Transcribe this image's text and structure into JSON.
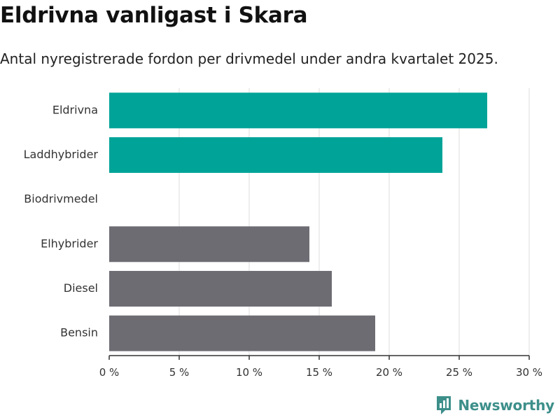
{
  "title": "Eldrivna vanligast i Skara",
  "subtitle": "Antal nyregistrerade fordon per drivmedel under andra kvartalet 2025.",
  "brand": {
    "name": "Newsworthy",
    "icon": "newsworthy-logo-icon",
    "color": "#3d8f8a"
  },
  "colors": {
    "highlight": "#00a398",
    "default": "#6d6c73",
    "grid": "#dddddd",
    "axis": "#333333"
  },
  "chart_data": {
    "type": "bar",
    "orientation": "horizontal",
    "categories": [
      "Eldrivna",
      "Laddhybrider",
      "Biodrivmedel",
      "Elhybrider",
      "Diesel",
      "Bensin"
    ],
    "values": [
      27.0,
      23.8,
      0,
      14.3,
      15.9,
      19.0
    ],
    "highlighted": [
      true,
      true,
      false,
      false,
      false,
      false
    ],
    "xlim": [
      0,
      30
    ],
    "xticks": [
      0,
      5,
      10,
      15,
      20,
      25,
      30
    ],
    "xtick_labels": [
      "0 %",
      "5 %",
      "10 %",
      "15 %",
      "20 %",
      "25 %",
      "30 %"
    ],
    "grid": true,
    "xlabel": "",
    "ylabel": ""
  }
}
